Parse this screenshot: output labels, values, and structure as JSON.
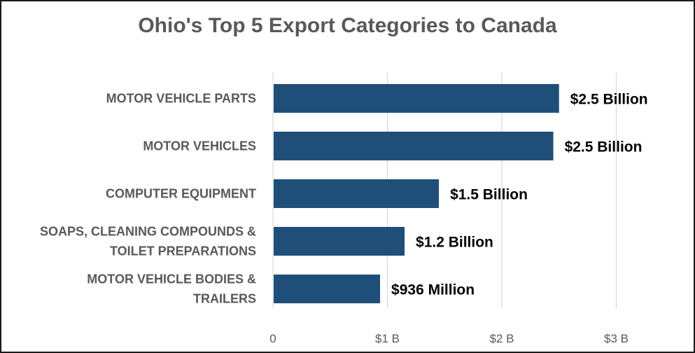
{
  "chart_data": {
    "type": "bar",
    "orientation": "horizontal",
    "title": "Ohio's Top 5 Export Categories to Canada",
    "categories": [
      [
        "MOTOR VEHICLE PARTS"
      ],
      [
        "MOTOR VEHICLES"
      ],
      [
        "COMPUTER EQUIPMENT"
      ],
      [
        "SOAPS, CLEANING COMPOUNDS &",
        "TOILET PREPARATIONS"
      ],
      [
        "MOTOR VEHICLE BODIES &",
        "TRAILERS"
      ]
    ],
    "values": [
      2.5,
      2.45,
      1.45,
      1.15,
      0.936
    ],
    "value_labels": [
      "$2.5 Billion",
      "$2.5 Billion",
      "$1.5 Billion",
      "$1.2 Billion",
      "$936 Million"
    ],
    "xlim": [
      0,
      3
    ],
    "x_ticks": [
      0,
      1,
      2,
      3
    ],
    "x_tick_labels": [
      "0",
      "$1 B",
      "$2 B",
      "$3 B"
    ],
    "grid": "vertical",
    "legend": "none",
    "colors": {
      "bar": "#1f4e79",
      "grid": "#d9d9d9",
      "axis_text": "#595959",
      "title": "#595959"
    }
  }
}
